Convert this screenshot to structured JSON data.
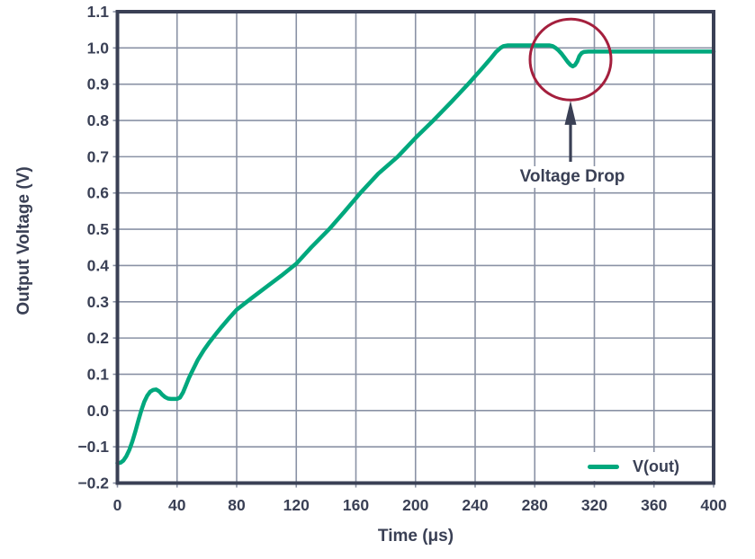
{
  "chart_data": {
    "type": "line",
    "title": "",
    "xlabel": "Time (μs)",
    "ylabel": "Output Voltage (V)",
    "xlim": [
      0,
      400
    ],
    "ylim": [
      -0.2,
      1.1
    ],
    "grid": true,
    "xticks": [
      {
        "v": 0,
        "label": "0"
      },
      {
        "v": 40,
        "label": "40"
      },
      {
        "v": 80,
        "label": "80"
      },
      {
        "v": 120,
        "label": "120"
      },
      {
        "v": 160,
        "label": "160"
      },
      {
        "v": 200,
        "label": "200"
      },
      {
        "v": 240,
        "label": "240"
      },
      {
        "v": 280,
        "label": "280"
      },
      {
        "v": 320,
        "label": "320"
      },
      {
        "v": 360,
        "label": "360"
      },
      {
        "v": 400,
        "label": "400"
      }
    ],
    "yticks": [
      {
        "v": 1.1,
        "label": "1.1"
      },
      {
        "v": 1.0,
        "label": "1.0"
      },
      {
        "v": 0.9,
        "label": "0.9"
      },
      {
        "v": 0.8,
        "label": "0.8"
      },
      {
        "v": 0.7,
        "label": "0.7"
      },
      {
        "v": 0.6,
        "label": "0.6"
      },
      {
        "v": 0.5,
        "label": "0.5"
      },
      {
        "v": 0.4,
        "label": "0.4"
      },
      {
        "v": 0.3,
        "label": "0.3"
      },
      {
        "v": 0.2,
        "label": "0.2"
      },
      {
        "v": 0.1,
        "label": "0.1"
      },
      {
        "v": 0.0,
        "label": "0.0"
      },
      {
        "v": -0.1,
        "label": "−0.1"
      },
      {
        "v": -0.2,
        "label": "−0.2"
      }
    ],
    "legend": {
      "position": "bottom-right",
      "entries": [
        {
          "label": "V(out)",
          "color": "#00A87D"
        }
      ]
    },
    "series": [
      {
        "name": "V(out)",
        "color": "#00A87D",
        "points": [
          [
            0,
            -0.145
          ],
          [
            2,
            -0.144
          ],
          [
            4,
            -0.138
          ],
          [
            6,
            -0.126
          ],
          [
            8,
            -0.108
          ],
          [
            10,
            -0.085
          ],
          [
            12,
            -0.058
          ],
          [
            14,
            -0.028
          ],
          [
            16,
            0.0
          ],
          [
            18,
            0.024
          ],
          [
            20,
            0.041
          ],
          [
            22,
            0.052
          ],
          [
            24,
            0.057
          ],
          [
            26,
            0.058
          ],
          [
            28,
            0.053
          ],
          [
            30,
            0.044
          ],
          [
            32,
            0.037
          ],
          [
            34,
            0.033
          ],
          [
            36,
            0.032
          ],
          [
            38,
            0.032
          ],
          [
            40,
            0.032
          ],
          [
            42,
            0.036
          ],
          [
            44,
            0.05
          ],
          [
            46,
            0.07
          ],
          [
            48,
            0.09
          ],
          [
            50,
            0.107
          ],
          [
            54,
            0.14
          ],
          [
            58,
            0.167
          ],
          [
            62,
            0.19
          ],
          [
            66,
            0.211
          ],
          [
            70,
            0.231
          ],
          [
            75,
            0.255
          ],
          [
            80,
            0.278
          ],
          [
            90,
            0.31
          ],
          [
            100,
            0.341
          ],
          [
            110,
            0.372
          ],
          [
            120,
            0.405
          ],
          [
            130,
            0.45
          ],
          [
            142,
            0.5
          ],
          [
            152,
            0.547
          ],
          [
            163,
            0.6
          ],
          [
            175,
            0.653
          ],
          [
            188,
            0.7
          ],
          [
            200,
            0.752
          ],
          [
            212,
            0.8
          ],
          [
            224,
            0.851
          ],
          [
            235,
            0.899
          ],
          [
            245,
            0.945
          ],
          [
            250,
            0.969
          ],
          [
            254,
            0.989
          ],
          [
            257,
            1.0
          ],
          [
            259,
            1.005
          ],
          [
            262,
            1.007
          ],
          [
            290,
            1.007
          ],
          [
            292,
            1.005
          ],
          [
            294,
            1.0
          ],
          [
            296,
            0.993
          ],
          [
            298,
            0.984
          ],
          [
            300,
            0.973
          ],
          [
            302,
            0.962
          ],
          [
            304,
            0.953
          ],
          [
            305.5,
            0.949
          ],
          [
            307,
            0.953
          ],
          [
            308.5,
            0.963
          ],
          [
            310,
            0.978
          ],
          [
            311.5,
            0.986
          ],
          [
            313,
            0.989
          ],
          [
            316,
            0.99
          ],
          [
            400,
            0.99
          ]
        ]
      }
    ],
    "annotations": {
      "circle": {
        "t": 304,
        "v": 0.968,
        "radius_px": 45,
        "color": "#A41F3D"
      },
      "arrow": {
        "t": 304,
        "tip_v": 0.855,
        "tail_v": 0.686,
        "color": "#3A4055"
      },
      "label": {
        "text": "Voltage Drop",
        "t": 304,
        "v": 0.644
      }
    },
    "colors": {
      "line": "#00A87D",
      "grid": "#8A92A5",
      "axis": "#3A4055",
      "circle": "#A41F3D",
      "background": "#FFFFFF"
    }
  }
}
